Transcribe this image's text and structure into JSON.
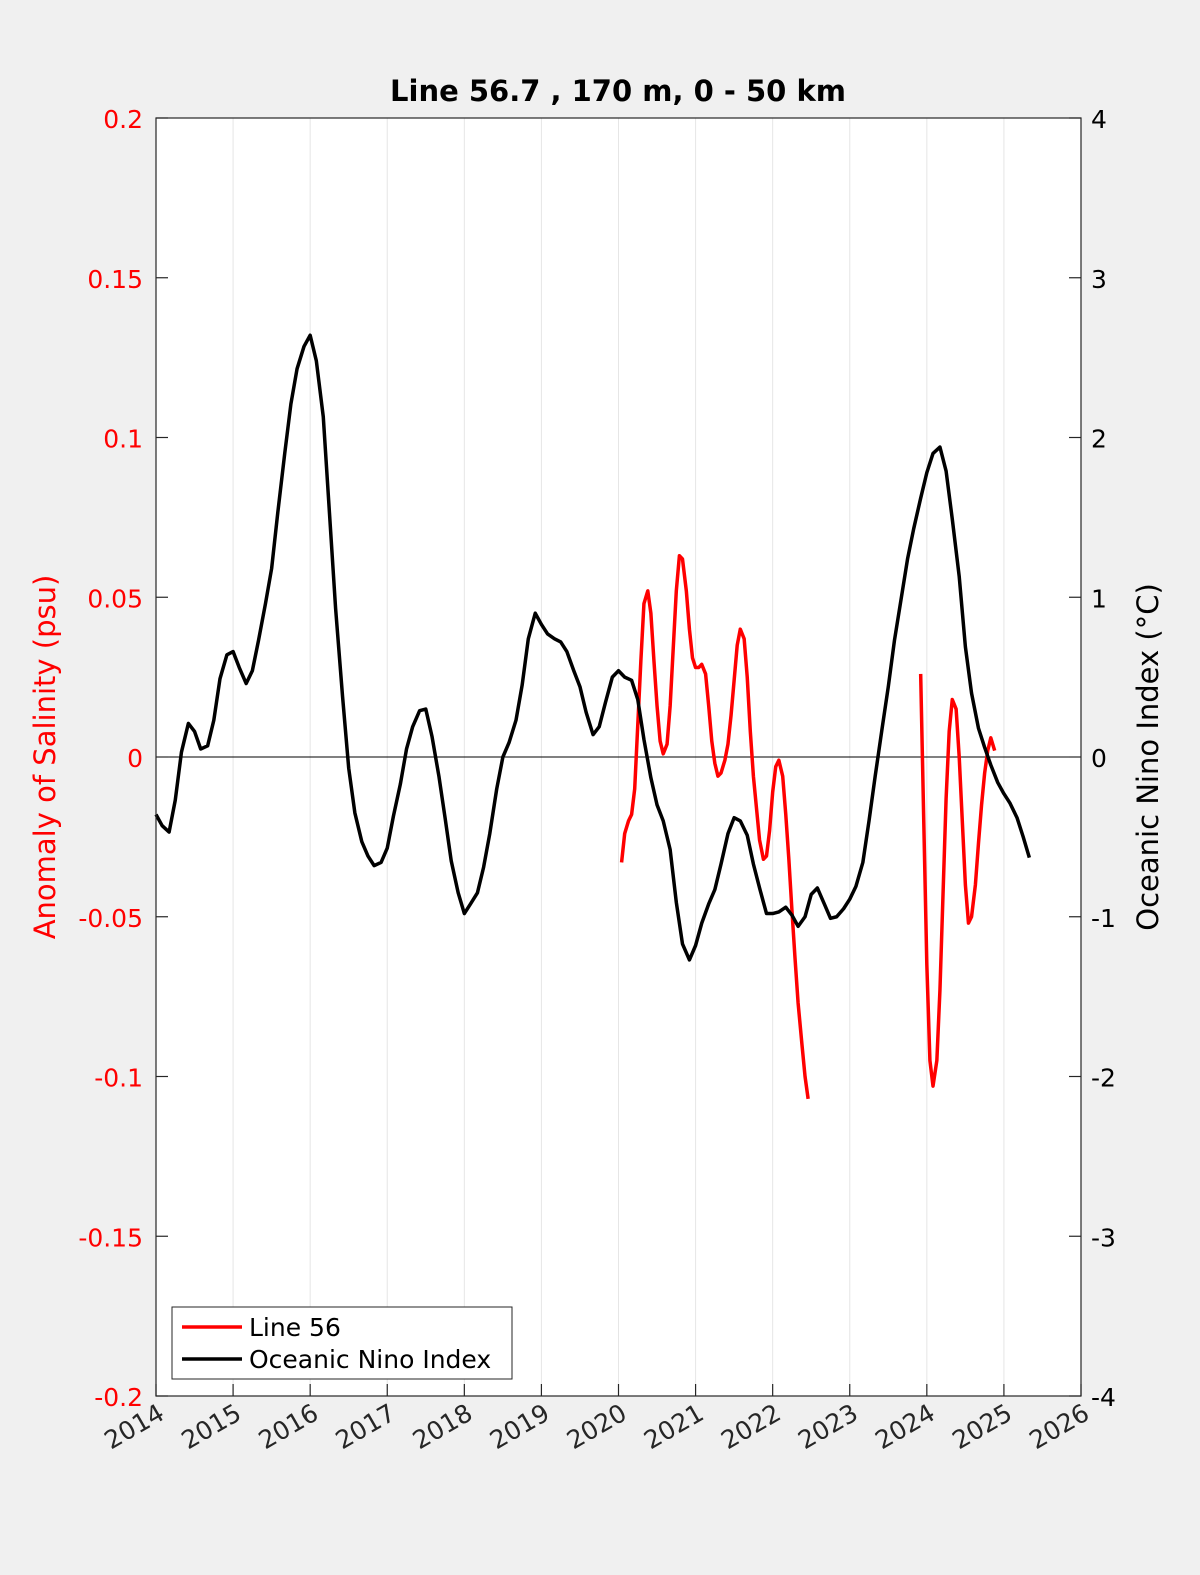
{
  "colors": {
    "figure_bg": "#f0f0f0",
    "axes_bg": "#ffffff",
    "left_axis": "#ff0000",
    "right_axis": "#000000",
    "grid": "#e6e6e6"
  },
  "chart_data": {
    "type": "line",
    "title": "Line 56.7 , 170 m, 0 - 50 km",
    "xlabel": "",
    "xlim": [
      2014,
      2026
    ],
    "xticks": [
      "2014",
      "2015",
      "2016",
      "2017",
      "2018",
      "2019",
      "2020",
      "2021",
      "2022",
      "2023",
      "2024",
      "2025",
      "2026"
    ],
    "grid_x": true,
    "legend_position": "bottom-left",
    "left_axis": {
      "label": "Anomaly of Salinity (psu)",
      "ylim": [
        -0.2,
        0.2
      ],
      "ticks": [
        "-0.2",
        "-0.15",
        "-0.1",
        "-0.05",
        "0",
        "0.05",
        "0.1",
        "0.15",
        "0.2"
      ]
    },
    "right_axis": {
      "label": "Oceanic Nino Index (°C)",
      "ylim": [
        -4,
        4
      ],
      "ticks": [
        "-4",
        "-3",
        "-2",
        "-1",
        "0",
        "1",
        "2",
        "3",
        "4"
      ]
    },
    "zero_line": 0,
    "series": [
      {
        "name": "Line 56",
        "axis": "left",
        "color": "#ff0000",
        "segments": [
          [
            [
              2020.04,
              -0.033
            ],
            [
              2020.08,
              -0.024
            ],
            [
              2020.13,
              -0.02
            ],
            [
              2020.17,
              -0.018
            ],
            [
              2020.21,
              -0.01
            ],
            [
              2020.25,
              0.01
            ],
            [
              2020.29,
              0.03
            ],
            [
              2020.33,
              0.048
            ],
            [
              2020.38,
              0.052
            ],
            [
              2020.42,
              0.045
            ],
            [
              2020.46,
              0.03
            ],
            [
              2020.5,
              0.016
            ],
            [
              2020.54,
              0.005
            ],
            [
              2020.58,
              0.001
            ],
            [
              2020.63,
              0.004
            ],
            [
              2020.67,
              0.016
            ],
            [
              2020.71,
              0.034
            ],
            [
              2020.75,
              0.052
            ],
            [
              2020.79,
              0.063
            ],
            [
              2020.83,
              0.062
            ],
            [
              2020.88,
              0.052
            ],
            [
              2020.92,
              0.04
            ],
            [
              2020.96,
              0.031
            ],
            [
              2021.0,
              0.028
            ],
            [
              2021.04,
              0.028
            ],
            [
              2021.08,
              0.029
            ],
            [
              2021.13,
              0.026
            ],
            [
              2021.17,
              0.016
            ],
            [
              2021.21,
              0.005
            ],
            [
              2021.25,
              -0.002
            ],
            [
              2021.29,
              -0.006
            ],
            [
              2021.33,
              -0.005
            ],
            [
              2021.38,
              -0.001
            ],
            [
              2021.42,
              0.004
            ],
            [
              2021.46,
              0.013
            ],
            [
              2021.5,
              0.024
            ],
            [
              2021.54,
              0.035
            ],
            [
              2021.58,
              0.04
            ],
            [
              2021.63,
              0.037
            ],
            [
              2021.67,
              0.025
            ],
            [
              2021.71,
              0.008
            ],
            [
              2021.75,
              -0.006
            ],
            [
              2021.79,
              -0.016
            ],
            [
              2021.83,
              -0.026
            ],
            [
              2021.88,
              -0.032
            ],
            [
              2021.92,
              -0.031
            ],
            [
              2021.96,
              -0.023
            ],
            [
              2022.0,
              -0.011
            ],
            [
              2022.04,
              -0.003
            ],
            [
              2022.08,
              -0.001
            ],
            [
              2022.13,
              -0.006
            ],
            [
              2022.17,
              -0.018
            ],
            [
              2022.21,
              -0.032
            ],
            [
              2022.25,
              -0.048
            ],
            [
              2022.29,
              -0.063
            ],
            [
              2022.33,
              -0.077
            ],
            [
              2022.38,
              -0.09
            ],
            [
              2022.42,
              -0.1
            ],
            [
              2022.46,
              -0.107
            ]
          ],
          [
            [
              2023.92,
              0.026
            ],
            [
              2023.96,
              -0.02
            ],
            [
              2024.0,
              -0.065
            ],
            [
              2024.04,
              -0.095
            ],
            [
              2024.08,
              -0.103
            ],
            [
              2024.13,
              -0.095
            ],
            [
              2024.17,
              -0.073
            ],
            [
              2024.21,
              -0.043
            ],
            [
              2024.25,
              -0.013
            ],
            [
              2024.29,
              0.008
            ],
            [
              2024.33,
              0.018
            ],
            [
              2024.38,
              0.015
            ],
            [
              2024.42,
              0.0
            ],
            [
              2024.46,
              -0.02
            ],
            [
              2024.5,
              -0.04
            ],
            [
              2024.54,
              -0.052
            ],
            [
              2024.58,
              -0.05
            ],
            [
              2024.63,
              -0.04
            ],
            [
              2024.67,
              -0.027
            ],
            [
              2024.71,
              -0.015
            ],
            [
              2024.75,
              -0.005
            ],
            [
              2024.79,
              0.002
            ],
            [
              2024.83,
              0.006
            ],
            [
              2024.88,
              0.002
            ]
          ]
        ]
      },
      {
        "name": "Oceanic Nino Index",
        "axis": "right",
        "color": "#000000",
        "segments": [
          [
            [
              2014.0,
              -0.36
            ],
            [
              2014.08,
              -0.43
            ],
            [
              2014.17,
              -0.47
            ],
            [
              2014.25,
              -0.27
            ],
            [
              2014.33,
              0.03
            ],
            [
              2014.42,
              0.21
            ],
            [
              2014.5,
              0.16
            ],
            [
              2014.58,
              0.05
            ],
            [
              2014.67,
              0.07
            ],
            [
              2014.75,
              0.23
            ],
            [
              2014.83,
              0.49
            ],
            [
              2014.92,
              0.64
            ],
            [
              2015.0,
              0.66
            ],
            [
              2015.08,
              0.56
            ],
            [
              2015.17,
              0.46
            ],
            [
              2015.25,
              0.54
            ],
            [
              2015.33,
              0.73
            ],
            [
              2015.42,
              0.96
            ],
            [
              2015.5,
              1.18
            ],
            [
              2015.58,
              1.53
            ],
            [
              2015.67,
              1.9
            ],
            [
              2015.75,
              2.21
            ],
            [
              2015.83,
              2.43
            ],
            [
              2015.92,
              2.57
            ],
            [
              2016.0,
              2.64
            ],
            [
              2016.08,
              2.48
            ],
            [
              2016.17,
              2.13
            ],
            [
              2016.25,
              1.53
            ],
            [
              2016.33,
              0.93
            ],
            [
              2016.42,
              0.38
            ],
            [
              2016.5,
              -0.07
            ],
            [
              2016.58,
              -0.35
            ],
            [
              2016.67,
              -0.53
            ],
            [
              2016.75,
              -0.62
            ],
            [
              2016.83,
              -0.68
            ],
            [
              2016.92,
              -0.66
            ],
            [
              2017.0,
              -0.57
            ],
            [
              2017.08,
              -0.37
            ],
            [
              2017.17,
              -0.17
            ],
            [
              2017.25,
              0.05
            ],
            [
              2017.33,
              0.19
            ],
            [
              2017.42,
              0.29
            ],
            [
              2017.5,
              0.3
            ],
            [
              2017.58,
              0.13
            ],
            [
              2017.67,
              -0.12
            ],
            [
              2017.75,
              -0.38
            ],
            [
              2017.83,
              -0.65
            ],
            [
              2017.92,
              -0.85
            ],
            [
              2018.0,
              -0.98
            ],
            [
              2018.08,
              -0.92
            ],
            [
              2018.17,
              -0.85
            ],
            [
              2018.25,
              -0.69
            ],
            [
              2018.33,
              -0.48
            ],
            [
              2018.42,
              -0.2
            ],
            [
              2018.5,
              0.0
            ],
            [
              2018.58,
              0.09
            ],
            [
              2018.67,
              0.23
            ],
            [
              2018.75,
              0.45
            ],
            [
              2018.83,
              0.74
            ],
            [
              2018.92,
              0.9
            ],
            [
              2019.0,
              0.83
            ],
            [
              2019.08,
              0.77
            ],
            [
              2019.17,
              0.74
            ],
            [
              2019.25,
              0.72
            ],
            [
              2019.33,
              0.66
            ],
            [
              2019.42,
              0.54
            ],
            [
              2019.5,
              0.44
            ],
            [
              2019.58,
              0.28
            ],
            [
              2019.67,
              0.14
            ],
            [
              2019.75,
              0.19
            ],
            [
              2019.83,
              0.34
            ],
            [
              2019.92,
              0.5
            ],
            [
              2020.0,
              0.54
            ],
            [
              2020.08,
              0.5
            ],
            [
              2020.17,
              0.48
            ],
            [
              2020.25,
              0.36
            ],
            [
              2020.33,
              0.11
            ],
            [
              2020.42,
              -0.13
            ],
            [
              2020.5,
              -0.3
            ],
            [
              2020.58,
              -0.4
            ],
            [
              2020.67,
              -0.58
            ],
            [
              2020.75,
              -0.91
            ],
            [
              2020.83,
              -1.17
            ],
            [
              2020.92,
              -1.27
            ],
            [
              2021.0,
              -1.18
            ],
            [
              2021.08,
              -1.04
            ],
            [
              2021.17,
              -0.92
            ],
            [
              2021.25,
              -0.83
            ],
            [
              2021.33,
              -0.67
            ],
            [
              2021.42,
              -0.48
            ],
            [
              2021.5,
              -0.38
            ],
            [
              2021.58,
              -0.4
            ],
            [
              2021.67,
              -0.49
            ],
            [
              2021.75,
              -0.67
            ],
            [
              2021.83,
              -0.82
            ],
            [
              2021.92,
              -0.98
            ],
            [
              2022.0,
              -0.98
            ],
            [
              2022.08,
              -0.97
            ],
            [
              2022.17,
              -0.94
            ],
            [
              2022.25,
              -0.99
            ],
            [
              2022.33,
              -1.06
            ],
            [
              2022.42,
              -1.0
            ],
            [
              2022.5,
              -0.86
            ],
            [
              2022.58,
              -0.82
            ],
            [
              2022.67,
              -0.92
            ],
            [
              2022.75,
              -1.01
            ],
            [
              2022.83,
              -1.0
            ],
            [
              2022.92,
              -0.95
            ],
            [
              2023.0,
              -0.89
            ],
            [
              2023.08,
              -0.81
            ],
            [
              2023.17,
              -0.66
            ],
            [
              2023.25,
              -0.4
            ],
            [
              2023.33,
              -0.12
            ],
            [
              2023.42,
              0.18
            ],
            [
              2023.5,
              0.44
            ],
            [
              2023.58,
              0.73
            ],
            [
              2023.67,
              1.0
            ],
            [
              2023.75,
              1.24
            ],
            [
              2023.83,
              1.43
            ],
            [
              2023.92,
              1.62
            ],
            [
              2024.0,
              1.78
            ],
            [
              2024.08,
              1.9
            ],
            [
              2024.17,
              1.94
            ],
            [
              2024.25,
              1.79
            ],
            [
              2024.33,
              1.49
            ],
            [
              2024.42,
              1.13
            ],
            [
              2024.5,
              0.69
            ],
            [
              2024.58,
              0.4
            ],
            [
              2024.67,
              0.18
            ],
            [
              2024.75,
              0.06
            ],
            [
              2024.83,
              -0.05
            ],
            [
              2024.92,
              -0.16
            ],
            [
              2025.0,
              -0.23
            ],
            [
              2025.08,
              -0.29
            ],
            [
              2025.17,
              -0.38
            ],
            [
              2025.25,
              -0.5
            ],
            [
              2025.33,
              -0.63
            ]
          ]
        ]
      }
    ]
  }
}
